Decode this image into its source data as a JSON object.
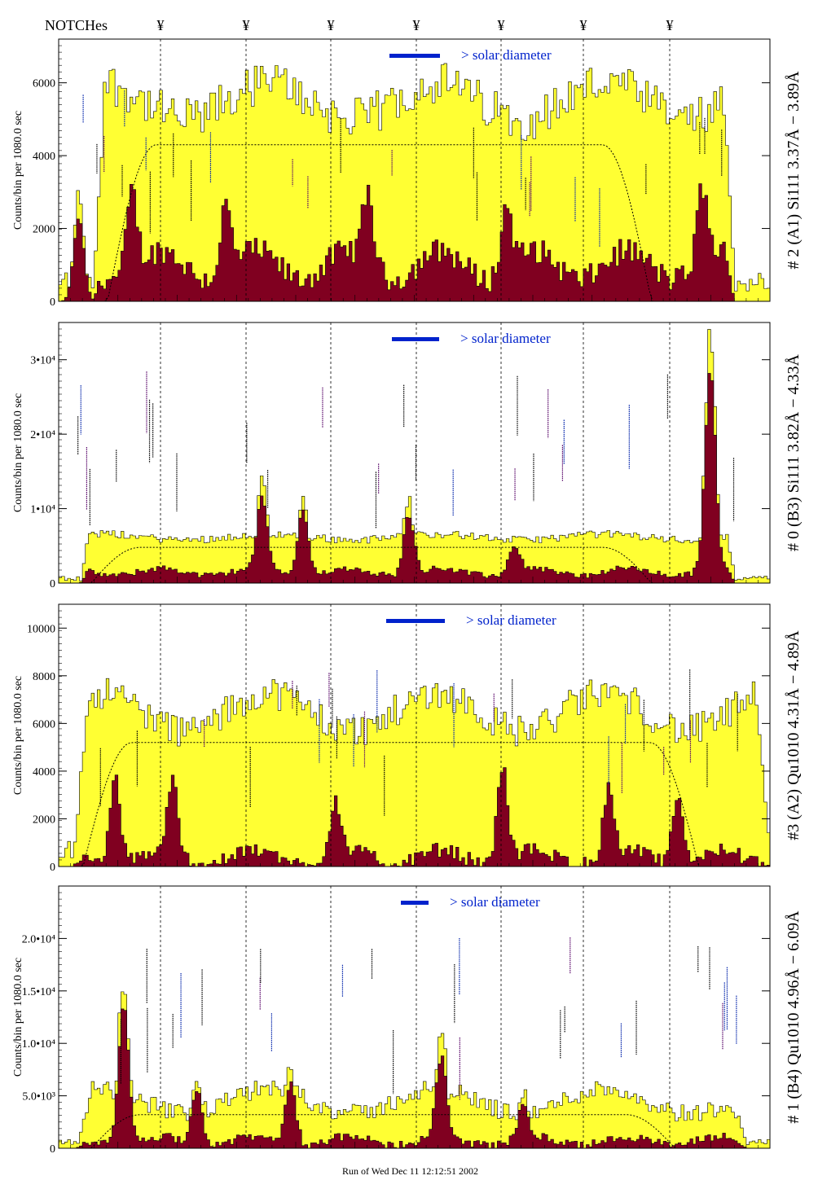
{
  "header": {
    "notches_label": "NOTCHes",
    "notch_marker": "¥",
    "notch_count": 7
  },
  "footer": {
    "run_label": "Run of Wed Dec 11 12:12:51 2002"
  },
  "colors": {
    "fill_total": "#ffff33",
    "fill_signal": "#800020",
    "legend_bar": "#0022cc",
    "line_label_blue": "#0022aa",
    "line_label_purple": "#550066"
  },
  "chart_data": [
    {
      "type": "bar",
      "title": "",
      "channel_label": "# 2 (A1) Si111  3.37Å − 3.89Å",
      "ylabel": "Counts/bin per   1080.0 sec",
      "legend": "> solar diameter",
      "ylim": [
        0,
        7200
      ],
      "yticks": [
        0,
        2000,
        4000,
        6000
      ],
      "ytick_labels": [
        "0",
        "2000",
        "4000",
        "6000"
      ],
      "bins": 240,
      "profile": {
        "base": 5500,
        "wave": 500,
        "noise": 600,
        "lo": 40,
        "hi": 285,
        "edge": 15
      },
      "signal": {
        "base": 1000,
        "wave": 400,
        "noise": 350,
        "spikes": [
          [
            95,
            2300
          ],
          [
            160,
            2200
          ],
          [
            275,
            1800
          ],
          [
            450,
            2000
          ],
          [
            620,
            1800
          ],
          [
            860,
            2000
          ]
        ]
      },
      "fit": {
        "level": 4300,
        "lo": 60,
        "hi": 250
      }
    },
    {
      "type": "bar",
      "title": "",
      "channel_label": "# 0 (B3) Si111  3.82Å − 4.33Å",
      "ylabel": "Counts/bin per   1080.0 sec",
      "legend": "> solar diameter",
      "ylim": [
        0,
        35000
      ],
      "yticks": [
        0,
        10000,
        20000,
        30000
      ],
      "ytick_labels": [
        "0",
        "1•10⁴",
        "2•10⁴",
        "3•10⁴"
      ],
      "bins": 240,
      "profile": {
        "base": 6200,
        "wave": 400,
        "noise": 500,
        "lo": 25,
        "hi": 285,
        "edge": 10
      },
      "signal": {
        "base": 1500,
        "wave": 500,
        "noise": 400,
        "spikes": [
          [
            320,
            9500
          ],
          [
            370,
            8500
          ],
          [
            500,
            8000
          ],
          [
            630,
            3500
          ],
          [
            870,
            27000
          ]
        ]
      },
      "fit": {
        "level": 4800,
        "lo": 40,
        "hi": 250
      }
    },
    {
      "type": "bar",
      "title": "",
      "channel_label": "#3 (A2) Qu1010  4.31Å − 4.89Å",
      "ylabel": "Counts/bin per   1080.0 sec",
      "legend": "> solar diameter",
      "ylim": [
        0,
        11000
      ],
      "yticks": [
        0,
        2000,
        4000,
        6000,
        8000,
        10000
      ],
      "ytick_labels": [
        "0",
        "2000",
        "4000",
        "6000",
        "8000",
        "10000"
      ],
      "bins": 240,
      "profile": {
        "base": 6500,
        "wave": 800,
        "noise": 700,
        "lo": 15,
        "hi": 300,
        "edge": 20
      },
      "signal": {
        "base": 400,
        "wave": 300,
        "noise": 300,
        "spikes": [
          [
            140,
            3500
          ],
          [
            210,
            3000
          ],
          [
            410,
            2200
          ],
          [
            615,
            4000
          ],
          [
            745,
            2800
          ],
          [
            830,
            2700
          ]
        ]
      },
      "fit": {
        "level": 5200,
        "lo": 30,
        "hi": 270
      }
    },
    {
      "type": "bar",
      "title": "",
      "channel_label": "# 1 (B4) Qu1010 4.96Å − 6.09Å",
      "ylabel": "Counts/bin per   1080.0 sec",
      "legend": "> solar diameter",
      "ylim": [
        0,
        25000
      ],
      "yticks": [
        0,
        5000,
        10000,
        15000,
        20000
      ],
      "ytick_labels": [
        "0",
        "5.0•10³",
        "1.0•10⁴",
        "1.5•10⁴",
        "2.0•10⁴"
      ],
      "bins": 240,
      "profile": {
        "base": 4500,
        "wave": 1200,
        "noise": 900,
        "lo": 20,
        "hi": 290,
        "edge": 20
      },
      "signal": {
        "base": 700,
        "wave": 400,
        "noise": 400,
        "spikes": [
          [
            150,
            13000
          ],
          [
            240,
            5000
          ],
          [
            355,
            6000
          ],
          [
            540,
            7500
          ],
          [
            640,
            3000
          ]
        ]
      },
      "fit": {
        "level": 3200,
        "lo": 40,
        "hi": 260
      }
    }
  ]
}
